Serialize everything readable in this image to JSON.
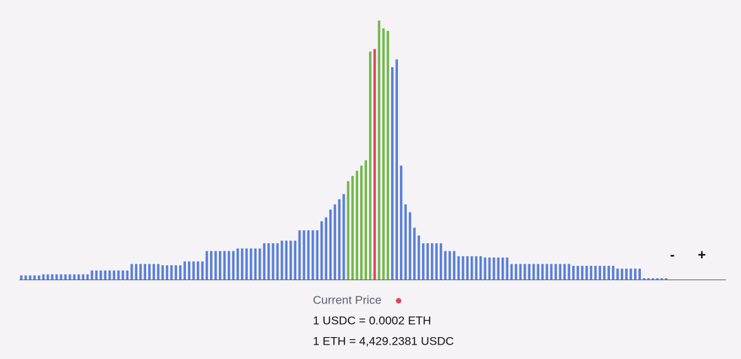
{
  "chart_data": {
    "type": "bar",
    "values": [
      1.6,
      1.6,
      1.6,
      1.6,
      1.6,
      2,
      2,
      2,
      2,
      2,
      2,
      2,
      2,
      2,
      2,
      2,
      3.5,
      3.5,
      3.5,
      3.5,
      3.5,
      3.5,
      3.5,
      3.5,
      3.5,
      6,
      6,
      6,
      6,
      6,
      6,
      6,
      5.5,
      5.5,
      5.5,
      5.5,
      5.5,
      7,
      7,
      7,
      7,
      7,
      11,
      11,
      11,
      11,
      11,
      11,
      11,
      12,
      12,
      12,
      12,
      12,
      12,
      14,
      14,
      14,
      14,
      15,
      15,
      15,
      15,
      19,
      19,
      19,
      19,
      19,
      22.5,
      24,
      27,
      29,
      31,
      33,
      38,
      40,
      42,
      44,
      46,
      88,
      89,
      100,
      97,
      96,
      82,
      85,
      44,
      29,
      26,
      20,
      17,
      14,
      14,
      14,
      14,
      14,
      11,
      11,
      11,
      9,
      9,
      9,
      9,
      9,
      9,
      8.5,
      8.5,
      8.5,
      8.5,
      8.5,
      8.5,
      6,
      6,
      6,
      6,
      6,
      6,
      6,
      6,
      6,
      6,
      6,
      6,
      6,
      6,
      5.3,
      5.3,
      5.3,
      5.3,
      5.3,
      5.3,
      5.3,
      5.3,
      5.3,
      5.3,
      4.2,
      4.2,
      4.2,
      4.2,
      4.2,
      4.2,
      0.5,
      0.5,
      0.5,
      0.5,
      0.5,
      0.5,
      0,
      0,
      0,
      0,
      0,
      0,
      0,
      0,
      0,
      0,
      0,
      0,
      0
    ],
    "color": "#5a7fd6",
    "active_color": "#72b84a",
    "current_color": "#e0435d",
    "active_range": [
      74,
      83
    ],
    "current_index": 80,
    "ylim": [
      0,
      100
    ]
  },
  "controls": {
    "zoom_out": "-",
    "zoom_in": "+"
  },
  "current_price": {
    "label": "Current Price",
    "price_0": "1 USDC = 0.0002 ETH",
    "price_1": "1 ETH = 4,429.2381 USDC"
  }
}
